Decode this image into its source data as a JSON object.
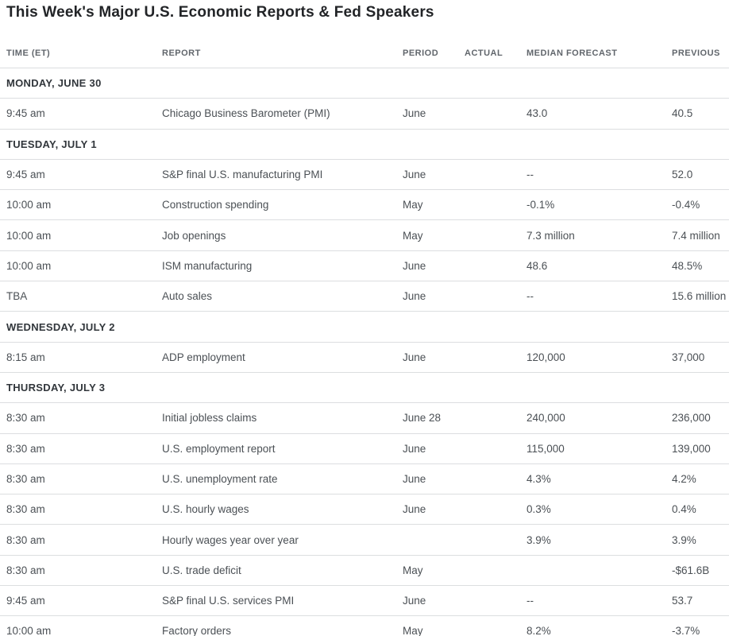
{
  "title": "This Week's Major U.S. Economic Reports & Fed Speakers",
  "colors": {
    "background": "#ffffff",
    "title_text": "#222427",
    "column_header_text": "#61666c",
    "day_header_text": "#31363b",
    "row_text": "#4b5055",
    "divider": "#dcdee0"
  },
  "table": {
    "columns": [
      "TIME (ET)",
      "REPORT",
      "PERIOD",
      "ACTUAL",
      "MEDIAN FORECAST",
      "PREVIOUS"
    ],
    "rows": [
      {
        "type": "day",
        "label": "MONDAY, JUNE 30"
      },
      {
        "type": "data",
        "time": "9:45 am",
        "report": "Chicago Business Barometer (PMI)",
        "period": "June",
        "actual": "",
        "forecast": "43.0",
        "previous": "40.5"
      },
      {
        "type": "day",
        "label": "TUESDAY, JULY 1"
      },
      {
        "type": "data",
        "time": "9:45 am",
        "report": "S&P final U.S. manufacturing PMI",
        "period": "June",
        "actual": "",
        "forecast": "--",
        "previous": "52.0"
      },
      {
        "type": "data",
        "time": "10:00 am",
        "report": "Construction spending",
        "period": "May",
        "actual": "",
        "forecast": "-0.1%",
        "previous": "-0.4%"
      },
      {
        "type": "data",
        "time": "10:00 am",
        "report": "Job openings",
        "period": "May",
        "actual": "",
        "forecast": "7.3 million",
        "previous": "7.4 million"
      },
      {
        "type": "data",
        "time": "10:00 am",
        "report": "ISM manufacturing",
        "period": "June",
        "actual": "",
        "forecast": "48.6",
        "previous": "48.5%"
      },
      {
        "type": "data",
        "time": "TBA",
        "report": "Auto sales",
        "period": "June",
        "actual": "",
        "forecast": "--",
        "previous": "15.6 million"
      },
      {
        "type": "day",
        "label": "WEDNESDAY, JULY 2"
      },
      {
        "type": "data",
        "time": "8:15 am",
        "report": "ADP employment",
        "period": "June",
        "actual": "",
        "forecast": "120,000",
        "previous": "37,000"
      },
      {
        "type": "day",
        "label": "THURSDAY, JULY 3"
      },
      {
        "type": "data",
        "time": "8:30 am",
        "report": "Initial jobless claims",
        "period": "June 28",
        "actual": "",
        "forecast": "240,000",
        "previous": "236,000"
      },
      {
        "type": "data",
        "time": "8:30 am",
        "report": "U.S. employment report",
        "period": "June",
        "actual": "",
        "forecast": "115,000",
        "previous": "139,000"
      },
      {
        "type": "data",
        "time": "8:30 am",
        "report": "U.S. unemployment rate",
        "period": "June",
        "actual": "",
        "forecast": "4.3%",
        "previous": "4.2%"
      },
      {
        "type": "data",
        "time": "8:30 am",
        "report": "U.S. hourly wages",
        "period": "June",
        "actual": "",
        "forecast": "0.3%",
        "previous": "0.4%"
      },
      {
        "type": "data",
        "time": "8:30 am",
        "report": "Hourly wages year over year",
        "period": "",
        "actual": "",
        "forecast": "3.9%",
        "previous": "3.9%"
      },
      {
        "type": "data",
        "time": "8:30 am",
        "report": "U.S. trade deficit",
        "period": "May",
        "actual": "",
        "forecast": "",
        "previous": "-$61.6B"
      },
      {
        "type": "data",
        "time": "9:45 am",
        "report": "S&P final U.S. services PMI",
        "period": "June",
        "actual": "",
        "forecast": "--",
        "previous": "53.7"
      },
      {
        "type": "data",
        "time": "10:00 am",
        "report": "Factory orders",
        "period": "May",
        "actual": "",
        "forecast": "8.2%",
        "previous": "-3.7%"
      }
    ]
  }
}
